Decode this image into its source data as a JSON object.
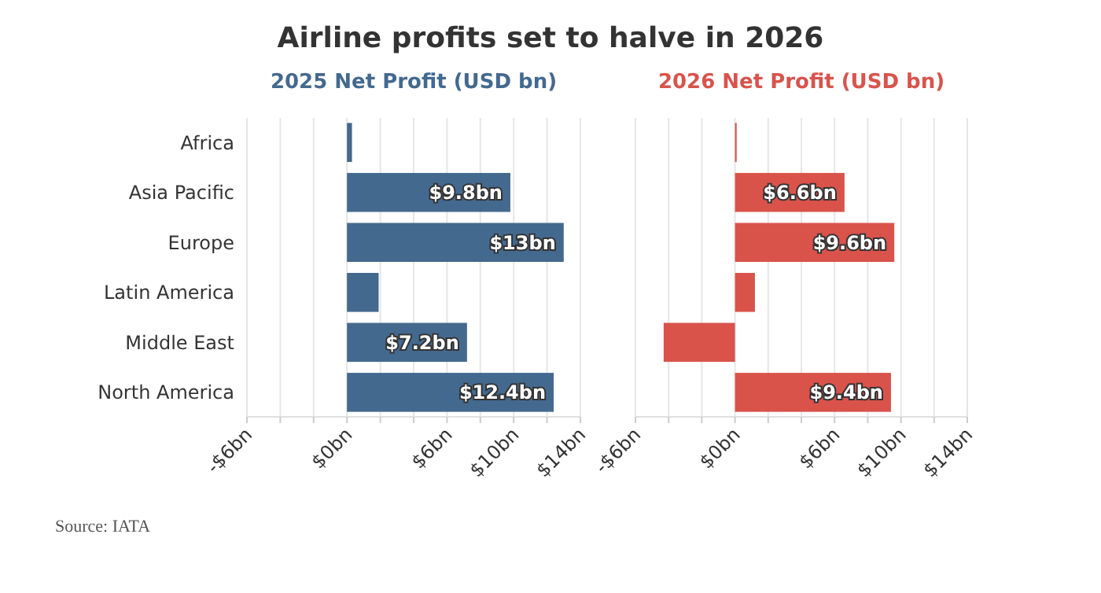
{
  "chart_data": [
    {
      "type": "bar",
      "orientation": "horizontal",
      "title": "Airline profits set to halve in 2026",
      "subtitle": "2025 Net Profit (USD bn)",
      "categories": [
        "Africa",
        "Asia Pacific",
        "Europe",
        "Latin America",
        "Middle East",
        "North America"
      ],
      "values": [
        0.3,
        9.8,
        13,
        1.9,
        7.2,
        12.4
      ],
      "value_labels": [
        null,
        "$9.8bn",
        "$13bn",
        null,
        "$7.2bn",
        "$12.4bn"
      ],
      "color": "#44698f",
      "xlim": [
        -6,
        14
      ],
      "xticks": [
        {
          "value": -6,
          "label": "-$6bn"
        },
        {
          "value": -4,
          "label": null
        },
        {
          "value": -2,
          "label": null
        },
        {
          "value": 0,
          "label": "$0bn"
        },
        {
          "value": 2,
          "label": null
        },
        {
          "value": 4,
          "label": null
        },
        {
          "value": 6,
          "label": "$6bn"
        },
        {
          "value": 8,
          "label": null
        },
        {
          "value": 10,
          "label": "$10bn"
        },
        {
          "value": 12,
          "label": null
        },
        {
          "value": 14,
          "label": "$14bn"
        }
      ],
      "grid": "x",
      "annotations": [
        "Source: IATA"
      ]
    },
    {
      "type": "bar",
      "orientation": "horizontal",
      "subtitle": "2026 Net Profit (USD bn)",
      "categories": [
        null,
        null,
        null,
        null,
        null,
        null
      ],
      "values": [
        0.1,
        6.6,
        9.6,
        1.2,
        -4.3,
        9.4
      ],
      "value_labels": [
        null,
        "$6.6bn",
        "$9.6bn",
        null,
        null,
        "$9.4bn"
      ],
      "color": "#d9534b",
      "xlim": [
        -6,
        14
      ],
      "xticks": [
        {
          "value": -6,
          "label": "-$6bn"
        },
        {
          "value": -4,
          "label": null
        },
        {
          "value": -2,
          "label": null
        },
        {
          "value": 0,
          "label": "$0bn"
        },
        {
          "value": 2,
          "label": null
        },
        {
          "value": 4,
          "label": null
        },
        {
          "value": 6,
          "label": "$6bn"
        },
        {
          "value": 8,
          "label": null
        },
        {
          "value": 10,
          "label": "$10bn"
        },
        {
          "value": 12,
          "label": null
        },
        {
          "value": 14,
          "label": "$14bn"
        }
      ],
      "grid": "x",
      "tick_labels": "x"
    }
  ]
}
